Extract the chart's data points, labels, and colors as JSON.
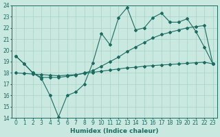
{
  "xlabel": "Humidex (Indice chaleur)",
  "ylabel": "",
  "xlim": [
    -0.5,
    23.5
  ],
  "ylim": [
    14,
    24
  ],
  "yticks": [
    14,
    15,
    16,
    17,
    18,
    19,
    20,
    21,
    22,
    23,
    24
  ],
  "xticks": [
    0,
    1,
    2,
    3,
    4,
    5,
    6,
    7,
    8,
    9,
    10,
    11,
    12,
    13,
    14,
    15,
    16,
    17,
    18,
    19,
    20,
    21,
    22,
    23
  ],
  "background_color": "#c8e8e0",
  "grid_color": "#a8d0c8",
  "line_color": "#1a6b60",
  "line1_y": [
    19.5,
    18.8,
    18.0,
    17.5,
    16.0,
    14.1,
    16.0,
    16.3,
    17.0,
    18.9,
    21.5,
    20.5,
    22.9,
    23.8,
    21.8,
    22.0,
    22.9,
    23.3,
    22.5,
    22.5,
    22.8,
    21.7,
    20.3,
    18.8
  ],
  "line2_y": [
    19.5,
    18.8,
    18.0,
    17.6,
    17.6,
    17.6,
    17.7,
    17.8,
    18.0,
    18.2,
    18.6,
    19.0,
    19.4,
    19.9,
    20.3,
    20.7,
    21.1,
    21.4,
    21.6,
    21.8,
    22.0,
    22.1,
    22.2,
    18.8
  ],
  "line3_y": [
    18.0,
    17.95,
    17.9,
    17.85,
    17.8,
    17.75,
    17.8,
    17.85,
    17.95,
    18.05,
    18.15,
    18.25,
    18.35,
    18.45,
    18.5,
    18.6,
    18.65,
    18.7,
    18.75,
    18.8,
    18.85,
    18.9,
    18.95,
    18.8
  ],
  "markersize": 2.0,
  "linewidth": 0.8,
  "tick_fontsize": 5.5,
  "xlabel_fontsize": 6.5
}
